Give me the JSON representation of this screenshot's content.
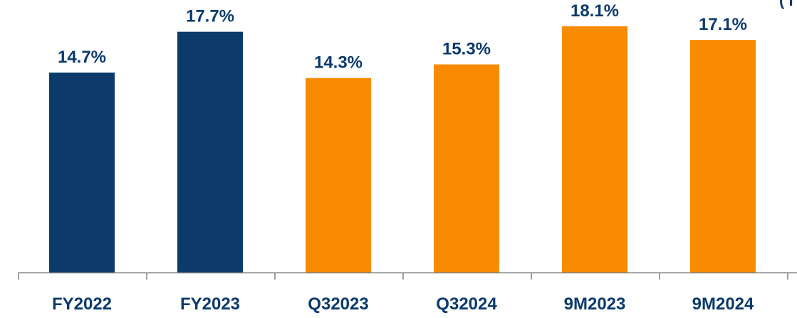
{
  "chart_data": {
    "type": "bar",
    "title": "",
    "xlabel": "",
    "ylabel": "",
    "categories": [
      "FY2022",
      "FY2023",
      "Q32023",
      "Q32024",
      "9M2023",
      "9M2024"
    ],
    "values": [
      14.7,
      17.7,
      14.3,
      15.3,
      18.1,
      17.1
    ],
    "value_labels": [
      "14.7%",
      "17.7%",
      "14.3%",
      "15.3%",
      "18.1%",
      "17.1%"
    ],
    "bar_colors": [
      "#0b3a6b",
      "#0b3a6b",
      "#f98b00",
      "#f98b00",
      "#f98b00",
      "#f98b00"
    ],
    "ylim": [
      0,
      20
    ],
    "grid": false,
    "legend": "none"
  },
  "colors": {
    "label_text": "#0b3a6b",
    "axis_line": "#808080"
  },
  "corner_glyph": "( I"
}
